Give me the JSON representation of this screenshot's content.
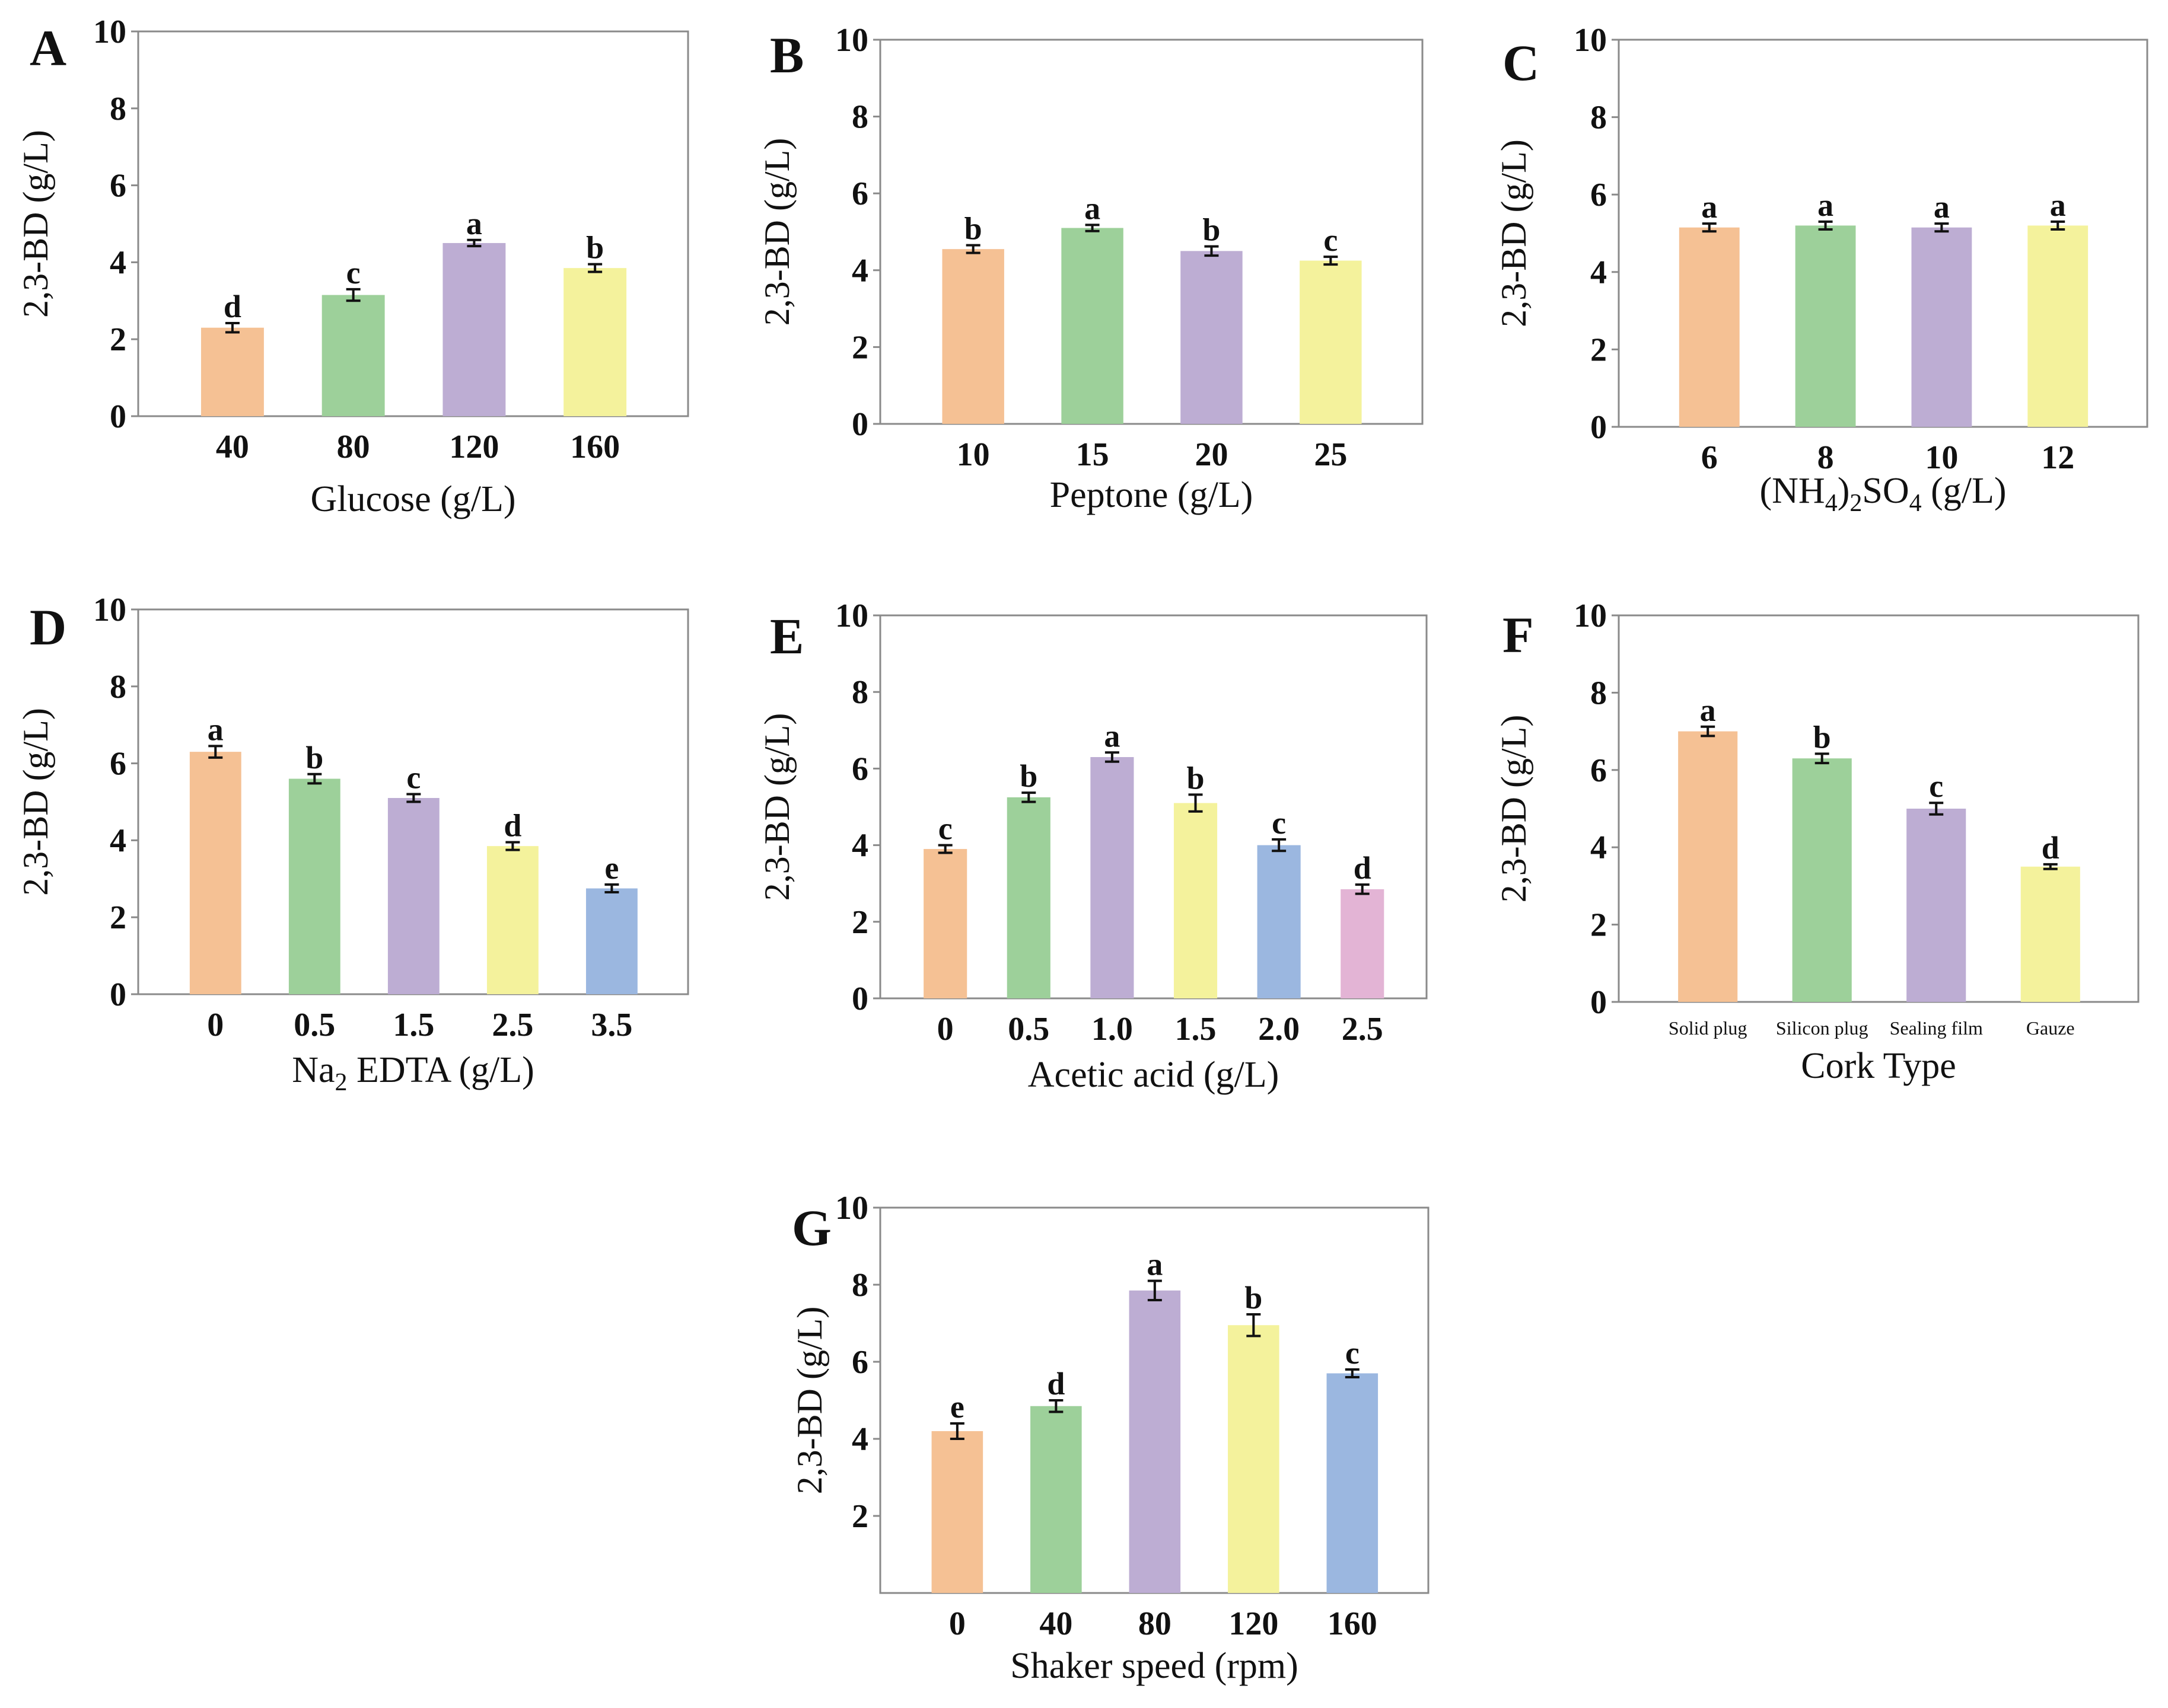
{
  "colors": {
    "orange": "#f5c194",
    "green": "#9dd09a",
    "purple": "#bdadd3",
    "yellow": "#f4f29c",
    "blue": "#9bb7e0",
    "pink": "#e3b4d5"
  },
  "chart_data": [
    {
      "panel": "A",
      "type": "bar",
      "xlabel": "Glucose (g/L)",
      "ylabel": "2,3-BD (g/L)",
      "ylim": [
        0,
        10
      ],
      "yticks": [
        "0",
        "2",
        "4",
        "6",
        "8",
        "10"
      ],
      "categories": [
        "40",
        "80",
        "120",
        "160"
      ],
      "values": [
        2.3,
        3.15,
        4.5,
        3.85
      ],
      "errors": [
        0.12,
        0.15,
        0.08,
        0.1
      ],
      "letters": [
        "d",
        "c",
        "a",
        "b"
      ],
      "colors": [
        "orange",
        "green",
        "purple",
        "yellow"
      ]
    },
    {
      "panel": "B",
      "type": "bar",
      "xlabel": "Peptone (g/L)",
      "ylabel": "2,3-BD (g/L)",
      "ylim": [
        0,
        10
      ],
      "yticks": [
        "0",
        "2",
        "4",
        "6",
        "8",
        "10"
      ],
      "categories": [
        "10",
        "15",
        "20",
        "25"
      ],
      "values": [
        4.55,
        5.1,
        4.5,
        4.25
      ],
      "errors": [
        0.1,
        0.08,
        0.12,
        0.1
      ],
      "letters": [
        "b",
        "a",
        "b",
        "c"
      ],
      "colors": [
        "orange",
        "green",
        "purple",
        "yellow"
      ]
    },
    {
      "panel": "C",
      "type": "bar",
      "xlabel": "(NH4)2SO4 (g/L)",
      "ylabel": "2,3-BD (g/L)",
      "xlabel_parts": [
        "(NH",
        "4",
        ")",
        "2",
        "SO",
        "4",
        " (g/L)"
      ],
      "ylim": [
        0,
        10
      ],
      "yticks": [
        "0",
        "2",
        "4",
        "6",
        "8",
        "10"
      ],
      "categories": [
        "6",
        "8",
        "10",
        "12"
      ],
      "values": [
        5.15,
        5.2,
        5.15,
        5.2
      ],
      "errors": [
        0.1,
        0.1,
        0.1,
        0.1
      ],
      "letters": [
        "a",
        "a",
        "a",
        "a"
      ],
      "colors": [
        "orange",
        "green",
        "purple",
        "yellow"
      ]
    },
    {
      "panel": "D",
      "type": "bar",
      "xlabel": "Na2 EDTA (g/L)",
      "ylabel": "2,3-BD (g/L)",
      "xlabel_parts": [
        "Na",
        "2",
        " EDTA (g/L)"
      ],
      "ylim": [
        0,
        10
      ],
      "yticks": [
        "0",
        "2",
        "4",
        "6",
        "8",
        "10"
      ],
      "categories": [
        "0",
        "0.5",
        "1.5",
        "2.5",
        "3.5"
      ],
      "values": [
        6.3,
        5.6,
        5.1,
        3.85,
        2.75
      ],
      "errors": [
        0.15,
        0.12,
        0.1,
        0.1,
        0.1
      ],
      "letters": [
        "a",
        "b",
        "c",
        "d",
        "e"
      ],
      "colors": [
        "orange",
        "green",
        "purple",
        "yellow",
        "blue"
      ]
    },
    {
      "panel": "E",
      "type": "bar",
      "xlabel": "Acetic acid (g/L)",
      "ylabel": "2,3-BD (g/L)",
      "ylim": [
        0,
        10
      ],
      "yticks": [
        "0",
        "2",
        "4",
        "6",
        "8",
        "10"
      ],
      "categories": [
        "0",
        "0.5",
        "1.0",
        "1.5",
        "2.0",
        "2.5"
      ],
      "values": [
        3.9,
        5.25,
        6.3,
        5.1,
        4.0,
        2.85
      ],
      "errors": [
        0.1,
        0.12,
        0.12,
        0.22,
        0.15,
        0.12
      ],
      "letters": [
        "c",
        "b",
        "a",
        "b",
        "c",
        "d"
      ],
      "colors": [
        "orange",
        "green",
        "purple",
        "yellow",
        "blue",
        "pink"
      ]
    },
    {
      "panel": "F",
      "type": "bar",
      "xlabel": "Cork Type",
      "ylabel": "2,3-BD (g/L)",
      "ylim": [
        0,
        10
      ],
      "yticks": [
        "0",
        "2",
        "4",
        "6",
        "8",
        "10"
      ],
      "categories": [
        "Solid plug",
        "Silicon plug",
        "Sealing film",
        "Gauze"
      ],
      "values": [
        7.0,
        6.3,
        5.0,
        3.5
      ],
      "errors": [
        0.12,
        0.12,
        0.15,
        0.06
      ],
      "letters": [
        "a",
        "b",
        "c",
        "d"
      ],
      "colors": [
        "orange",
        "green",
        "purple",
        "yellow"
      ]
    },
    {
      "panel": "G",
      "type": "bar",
      "xlabel": "Shaker speed (rpm)",
      "ylabel": "2,3-BD (g/L)",
      "ylim": [
        0,
        10
      ],
      "yticks": [
        "2",
        "4",
        "6",
        "8",
        "10"
      ],
      "categories": [
        "0",
        "40",
        "80",
        "120",
        "160"
      ],
      "values": [
        4.2,
        4.85,
        7.85,
        6.95,
        5.7
      ],
      "errors": [
        0.2,
        0.15,
        0.25,
        0.28,
        0.1
      ],
      "letters": [
        "e",
        "d",
        "a",
        "b",
        "c"
      ],
      "colors": [
        "orange",
        "green",
        "purple",
        "yellow",
        "blue"
      ]
    }
  ]
}
